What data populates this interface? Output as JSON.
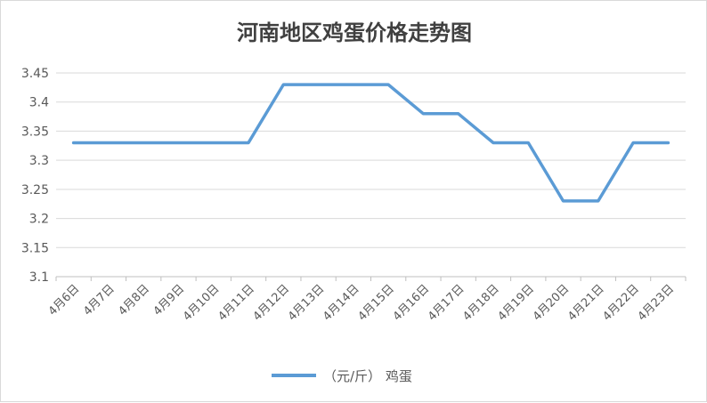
{
  "chart_data": {
    "type": "line",
    "title": "河南地区鸡蛋价格走势图",
    "categories": [
      "4月6日",
      "4月7日",
      "4月8日",
      "4月9日",
      "4月10日",
      "4月11日",
      "4月12日",
      "4月13日",
      "4月14日",
      "4月15日",
      "4月16日",
      "4月17日",
      "4月18日",
      "4月19日",
      "4月20日",
      "4月21日",
      "4月22日",
      "4月23日"
    ],
    "series": [
      {
        "name": "（元/斤） 鸡蛋",
        "color": "#5b9bd5",
        "values": [
          3.33,
          3.33,
          3.33,
          3.33,
          3.33,
          3.33,
          3.43,
          3.43,
          3.43,
          3.43,
          3.38,
          3.38,
          3.33,
          3.33,
          3.23,
          3.23,
          3.33,
          3.33
        ]
      }
    ],
    "y_ticks": [
      "3.1",
      "3.15",
      "3.2",
      "3.25",
      "3.3",
      "3.35",
      "3.4",
      "3.45"
    ],
    "ylim": [
      3.1,
      3.45
    ],
    "grid": true,
    "legend_position": "bottom"
  }
}
